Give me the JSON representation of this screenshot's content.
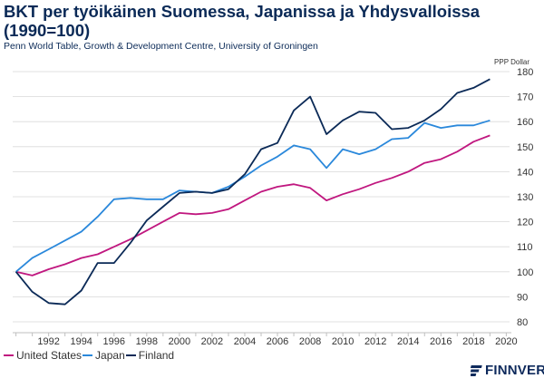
{
  "title": "BKT per työikäinen Suomessa, Japanissa ja Yhdysvalloissa (1990=100)",
  "subtitle": "Penn World Table, Growth & Development Centre, University of Groningen",
  "logo": "FINNVERA",
  "chart_data": {
    "type": "line",
    "title": "BKT per työikäinen Suomessa, Japanissa ja Yhdysvalloissa (1990=100)",
    "ylabel": "PPP Dollar",
    "xlim": [
      1989.8,
      2020.2
    ],
    "ylim": [
      80,
      180
    ],
    "y_ticks": [
      80,
      90,
      100,
      110,
      120,
      130,
      140,
      150,
      160,
      170,
      180
    ],
    "x_ticks": [
      1992,
      1994,
      1996,
      1998,
      2000,
      2002,
      2004,
      2006,
      2008,
      2010,
      2012,
      2014,
      2016,
      2018,
      2020
    ],
    "y_axis_position": "right",
    "grid": true,
    "legend": "bottom-left",
    "x": [
      1990,
      1991,
      1992,
      1993,
      1994,
      1995,
      1996,
      1997,
      1998,
      1999,
      2000,
      2001,
      2002,
      2003,
      2004,
      2005,
      2006,
      2007,
      2008,
      2009,
      2010,
      2011,
      2012,
      2013,
      2014,
      2015,
      2016,
      2017,
      2018,
      2019
    ],
    "series": [
      {
        "name": "United States",
        "color": "#c0177f",
        "values": [
          100,
          98.5,
          101,
          103,
          105.5,
          107,
          110,
          113,
          116.5,
          120,
          123.5,
          123,
          123.5,
          125,
          128.5,
          132,
          134,
          135,
          133.5,
          128.5,
          131,
          133,
          135.5,
          137.5,
          140,
          143.5,
          145,
          148,
          152,
          154.5
        ]
      },
      {
        "name": "Japan",
        "color": "#2a88db",
        "values": [
          100,
          105.5,
          109,
          112.5,
          116,
          122,
          129,
          129.5,
          129,
          129,
          132.5,
          132,
          131.5,
          134,
          138,
          142.5,
          146,
          150.5,
          149,
          141.5,
          149,
          147,
          149,
          153,
          153.5,
          159.5,
          157.5,
          158.5,
          158.5,
          160.5
        ]
      },
      {
        "name": "Finland",
        "color": "#0b2a57",
        "values": [
          100,
          92,
          87.5,
          87,
          92.5,
          103.5,
          103.5,
          111.5,
          120.5,
          126,
          131.5,
          132,
          131.5,
          133,
          139,
          149,
          151.5,
          164.5,
          170,
          155,
          160.5,
          164,
          163.5,
          157,
          157.5,
          160.5,
          165,
          171.5,
          173.5,
          177
        ]
      }
    ]
  }
}
